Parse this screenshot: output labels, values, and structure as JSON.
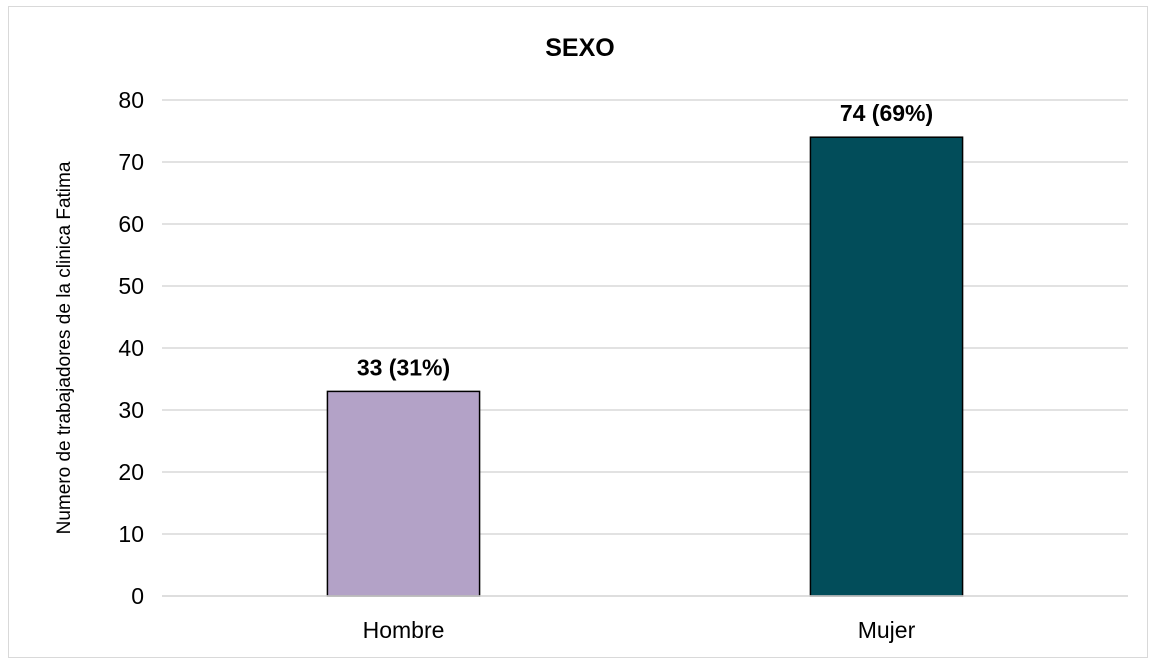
{
  "chart_data": {
    "type": "bar",
    "title": "SEXO",
    "xlabel": "",
    "ylabel": "Numero de trabajadores de la clinica Fatima",
    "categories": [
      "Hombre",
      "Mujer"
    ],
    "values": [
      33,
      74
    ],
    "data_labels": [
      "33 (31%)",
      "74 (69%)"
    ],
    "bar_colors": [
      "#b3a2c7",
      "#024d5a"
    ],
    "ylim": [
      0,
      80
    ],
    "yticks": [
      0,
      10,
      20,
      30,
      40,
      50,
      60,
      70,
      80
    ],
    "grid": true,
    "legend": "none"
  }
}
